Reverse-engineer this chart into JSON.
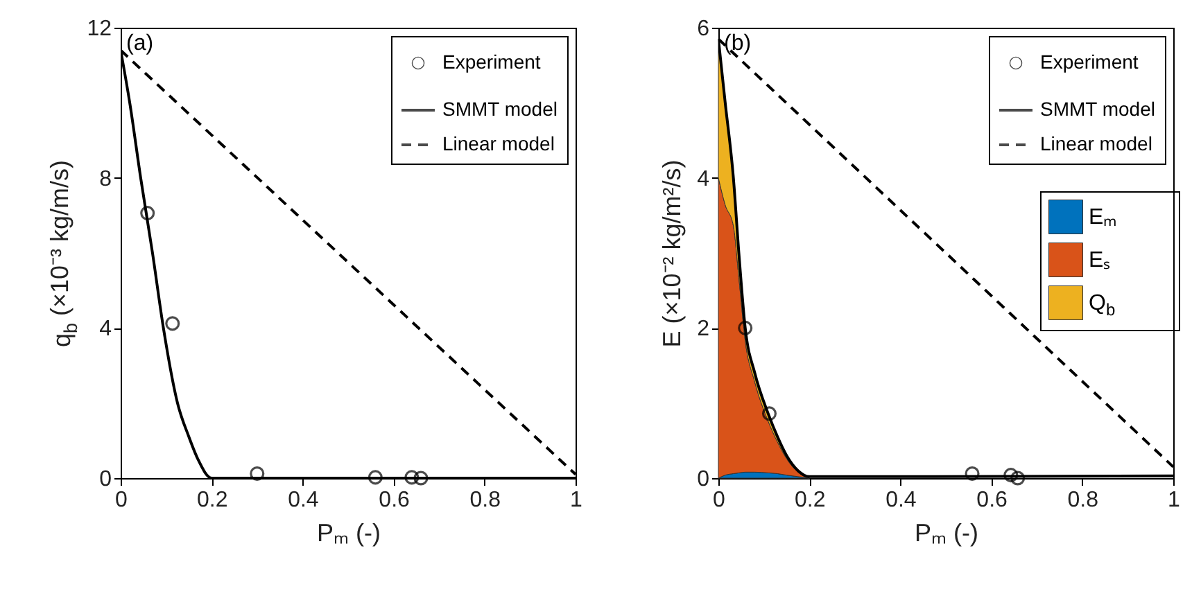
{
  "chart_data": [
    {
      "type": "line",
      "xlabel": "Pₘ (-)",
      "ylabel": "q$_{b}$ (×10⁻³ kg/m/s)",
      "annotations": [
        "(a)"
      ],
      "xlim": [
        0,
        1
      ],
      "ylim": [
        0,
        12
      ],
      "xticks": [
        0,
        0.2,
        0.4,
        0.6,
        0.8,
        1
      ],
      "yticks": [
        0,
        4,
        8,
        12
      ],
      "legend": "top right",
      "series": [
        {
          "name": "Experiment",
          "type": "scatter",
          "marker": "circle",
          "color": "#000000",
          "x": [
            0.059,
            0.114,
            0.3,
            0.56,
            0.64,
            0.66
          ],
          "values": [
            7.06,
            4.12,
            0.12,
            0.02,
            0.02,
            0
          ]
        },
        {
          "name": "SMMT model",
          "line_style": "solid",
          "color": "#000000",
          "x": [
            0,
            0.02,
            0.044,
            0.07,
            0.094,
            0.125,
            0.15,
            0.17,
            0.2,
            1
          ],
          "values": [
            11.4,
            10,
            8,
            6,
            4,
            2,
            1.1,
            0.5,
            0,
            0
          ]
        },
        {
          "name": "Linear model",
          "line_style": "dashed",
          "color": "#000000",
          "x": [
            0,
            1
          ],
          "values": [
            11.4,
            0.1
          ]
        }
      ]
    },
    {
      "type": "area",
      "stacked": true,
      "xlabel": "Pₘ (-)",
      "ylabel": "E (×10⁻² kg/m²/s)",
      "annotations": [
        "(b)"
      ],
      "xlim": [
        0,
        1
      ],
      "ylim": [
        0,
        6
      ],
      "xticks": [
        0,
        0.2,
        0.4,
        0.6,
        0.8,
        1
      ],
      "yticks": [
        0,
        2,
        4,
        6
      ],
      "legend": "top right",
      "series": [
        {
          "name": "Eₘ",
          "color": "#0072bd",
          "x": [
            0,
            0.015,
            0.033,
            0.045,
            0.059,
            0.08,
            0.11,
            0.13,
            0.15,
            0.175,
            0.2
          ],
          "values": [
            0,
            0.04,
            0.06,
            0.07,
            0.08,
            0.08,
            0.07,
            0.06,
            0.04,
            0.02,
            0
          ]
        },
        {
          "name": "Eₛ",
          "color": "#d95319",
          "x": [
            0,
            0.015,
            0.033,
            0.045,
            0.059,
            0.08,
            0.11,
            0.13,
            0.15,
            0.175,
            0.2
          ],
          "values": [
            4.0,
            3.6,
            3.3,
            2.6,
            1.75,
            1.2,
            0.68,
            0.42,
            0.22,
            0.06,
            0
          ]
        },
        {
          "name": "Q$_{b}$",
          "color": "#edb120",
          "x": [
            0,
            0.015,
            0.033,
            0.045,
            0.059,
            0.08,
            0.11,
            0.13,
            0.15,
            0.175,
            0.2
          ],
          "values": [
            1.85,
            1.36,
            0.64,
            0.33,
            0.17,
            0.12,
            0.1,
            0.07,
            0.04,
            0.02,
            0
          ]
        },
        {
          "name": "Experiment",
          "type": "scatter",
          "marker": "circle",
          "color": "#000000",
          "x": [
            0.059,
            0.112,
            0.558,
            0.643,
            0.658
          ],
          "values": [
            2.0,
            0.86,
            0.06,
            0.04,
            0
          ]
        },
        {
          "name": "SMMT model",
          "type": "line",
          "line_style": "solid",
          "color": "#000000",
          "x": [
            0,
            0.015,
            0.033,
            0.045,
            0.059,
            0.08,
            0.11,
            0.13,
            0.15,
            0.175,
            0.2,
            1
          ],
          "values": [
            5.85,
            5,
            4,
            3,
            2,
            1.4,
            0.85,
            0.55,
            0.3,
            0.1,
            0.02,
            0.03
          ]
        },
        {
          "name": "Linear model",
          "type": "line",
          "line_style": "dashed",
          "color": "#000000",
          "x": [
            0,
            1
          ],
          "values": [
            5.85,
            0.15
          ]
        }
      ]
    }
  ]
}
